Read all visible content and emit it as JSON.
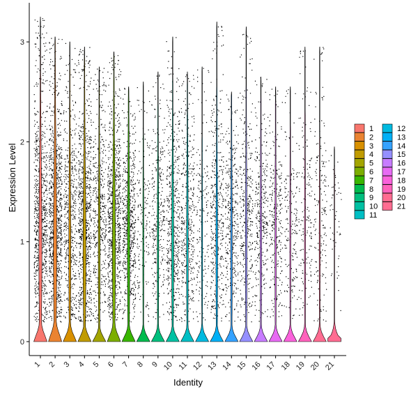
{
  "chart_data": {
    "type": "violin",
    "xlabel": "Identity",
    "ylabel": "Expression Level",
    "ylim": [
      -0.15,
      3.35
    ],
    "yticks": [
      0,
      1,
      2,
      3
    ],
    "categories": [
      "1",
      "2",
      "3",
      "4",
      "5",
      "6",
      "7",
      "8",
      "9",
      "10",
      "11",
      "12",
      "13",
      "14",
      "15",
      "16",
      "17",
      "18",
      "19",
      "20",
      "21"
    ],
    "series": [
      {
        "max": 3.25,
        "median": 0.0,
        "density": 0.9,
        "nz": 0.66
      },
      {
        "max": 3.05,
        "median": 0.0,
        "density": 1.0,
        "nz": 0.72
      },
      {
        "max": 3.0,
        "median": 0.0,
        "density": 0.55,
        "nz": 0.55
      },
      {
        "max": 2.95,
        "median": 0.0,
        "density": 0.85,
        "nz": 0.52
      },
      {
        "max": 2.75,
        "median": 0.0,
        "density": 0.5,
        "nz": 0.4
      },
      {
        "max": 2.9,
        "median": 0.0,
        "density": 0.9,
        "nz": 0.6
      },
      {
        "max": 2.55,
        "median": 0.0,
        "density": 0.65,
        "nz": 0.5
      },
      {
        "max": 2.6,
        "median": 0.0,
        "density": 0.2,
        "nz": 0.1
      },
      {
        "max": 2.7,
        "median": 0.0,
        "density": 0.35,
        "nz": 0.28
      },
      {
        "max": 3.05,
        "median": 0.0,
        "density": 0.55,
        "nz": 0.42
      },
      {
        "max": 2.7,
        "median": 0.0,
        "density": 0.45,
        "nz": 0.45
      },
      {
        "max": 2.75,
        "median": 0.0,
        "density": 0.2,
        "nz": 0.05
      },
      {
        "max": 3.2,
        "median": 0.0,
        "density": 0.45,
        "nz": 0.4
      },
      {
        "max": 2.5,
        "median": 0.0,
        "density": 0.4,
        "nz": 0.45
      },
      {
        "max": 3.15,
        "median": 0.0,
        "density": 0.4,
        "nz": 0.45
      },
      {
        "max": 2.65,
        "median": 0.0,
        "density": 0.35,
        "nz": 0.4
      },
      {
        "max": 2.55,
        "median": 0.0,
        "density": 0.3,
        "nz": 0.38
      },
      {
        "max": 2.55,
        "median": 0.0,
        "density": 0.2,
        "nz": 0.25
      },
      {
        "max": 2.95,
        "median": 0.0,
        "density": 0.2,
        "nz": 0.4
      },
      {
        "max": 2.95,
        "median": 0.0,
        "density": 0.2,
        "nz": 0.05
      },
      {
        "max": 1.95,
        "median": 0.0,
        "density": 0.06,
        "nz": 0.5
      }
    ],
    "legend": {
      "placement": "right",
      "columns": 2,
      "entries": [
        "1",
        "2",
        "3",
        "4",
        "5",
        "6",
        "7",
        "8",
        "9",
        "10",
        "11",
        "12",
        "13",
        "14",
        "15",
        "16",
        "17",
        "18",
        "19",
        "20",
        "21"
      ]
    },
    "colors": [
      "#F8766D",
      "#EA8331",
      "#D89000",
      "#C09B00",
      "#A3A500",
      "#7CAE00",
      "#39B600",
      "#00BB4E",
      "#00BF7D",
      "#00C1A3",
      "#00BFC4",
      "#00BAE0",
      "#00B0F6",
      "#35A2FF",
      "#9590FF",
      "#C77CFF",
      "#E76BF3",
      "#FA62DB",
      "#FF62BC",
      "#FF6C91",
      "#FF6C91"
    ],
    "grid": false
  }
}
